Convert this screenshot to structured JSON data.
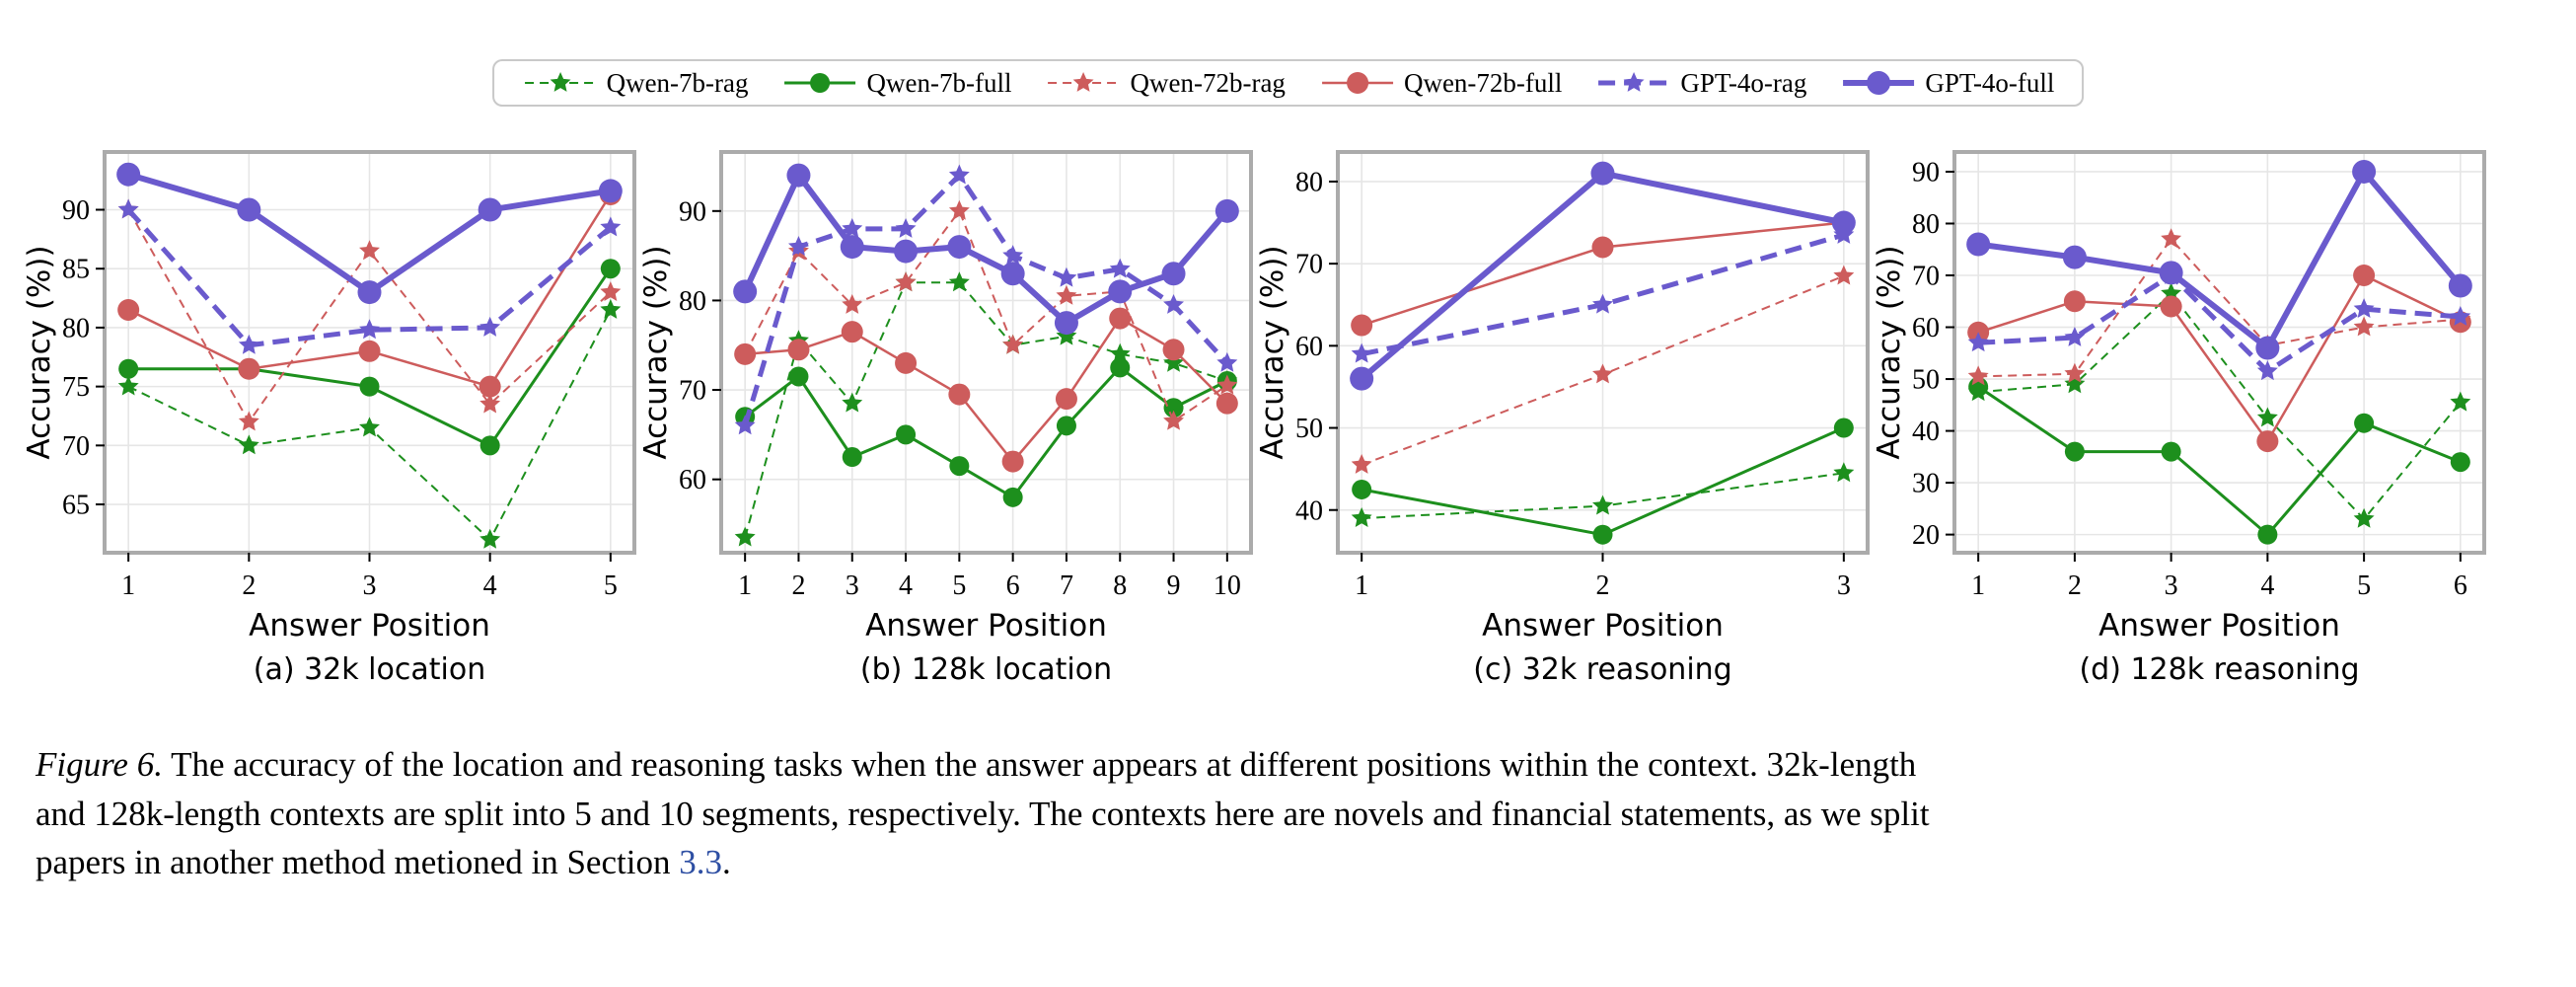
{
  "colors": {
    "qwen7b_green": "#1d8f1d",
    "qwen72b_red": "#cd5c5c",
    "gpt4o_blue": "#6a5acd",
    "grid": "#e6e6e6",
    "plot_border": "#ababab",
    "link_blue": "#2e4fa3"
  },
  "legend": {
    "items": [
      {
        "name": "Qwen-7b-rag",
        "color": "#1d8f1d",
        "style": "dashed",
        "marker": "star"
      },
      {
        "name": "Qwen-7b-full",
        "color": "#1d8f1d",
        "style": "solid",
        "marker": "circle"
      },
      {
        "name": "Qwen-72b-rag",
        "color": "#cd5c5c",
        "style": "dashed",
        "marker": "star"
      },
      {
        "name": "Qwen-72b-full",
        "color": "#cd5c5c",
        "style": "solid",
        "marker": "circle"
      },
      {
        "name": "GPT-4o-rag",
        "color": "#6a5acd",
        "style": "dashed",
        "marker": "star"
      },
      {
        "name": "GPT-4o-full",
        "color": "#6a5acd",
        "style": "solid",
        "marker": "circle"
      }
    ]
  },
  "chart_data": [
    {
      "id": "a",
      "type": "line",
      "caption": "(a) 32k location",
      "xlabel": "Answer Position",
      "ylabel": "Accuracy (%))",
      "x": [
        1,
        2,
        3,
        4,
        5
      ],
      "yticks": [
        65,
        70,
        75,
        80,
        85,
        90
      ],
      "ylim": [
        60.9,
        94.9
      ],
      "grid": true,
      "series": [
        {
          "name": "Qwen-7b-rag",
          "values": [
            75,
            70,
            71.5,
            62,
            81.5
          ]
        },
        {
          "name": "Qwen-7b-full",
          "values": [
            76.5,
            76.5,
            75,
            70,
            85
          ]
        },
        {
          "name": "Qwen-72b-rag",
          "values": [
            90,
            72,
            86.5,
            73.5,
            83
          ]
        },
        {
          "name": "Qwen-72b-full",
          "values": [
            81.5,
            76.5,
            78,
            75,
            91.3
          ]
        },
        {
          "name": "GPT-4o-rag",
          "values": [
            90,
            78.5,
            79.8,
            80,
            88.5
          ]
        },
        {
          "name": "GPT-4o-full",
          "values": [
            93,
            90,
            83,
            90,
            91.6
          ]
        }
      ]
    },
    {
      "id": "b",
      "type": "line",
      "caption": "(b) 128k location",
      "xlabel": "Answer Position",
      "ylabel": "Accuracy (%))",
      "x": [
        1,
        2,
        3,
        4,
        5,
        6,
        7,
        8,
        9,
        10
      ],
      "yticks": [
        60,
        70,
        80,
        90
      ],
      "ylim": [
        51.8,
        96.6
      ],
      "grid": true,
      "series": [
        {
          "name": "Qwen-7b-rag",
          "values": [
            53.5,
            75.5,
            68.5,
            82,
            82,
            75,
            76,
            74,
            73,
            71
          ]
        },
        {
          "name": "Qwen-7b-full",
          "values": [
            67,
            71.5,
            62.5,
            65,
            61.5,
            58,
            66,
            72.5,
            68,
            71
          ]
        },
        {
          "name": "Qwen-72b-rag",
          "values": [
            74,
            85.5,
            79.5,
            82,
            90,
            75,
            80.5,
            81,
            66.5,
            70.5
          ]
        },
        {
          "name": "Qwen-72b-full",
          "values": [
            74,
            74.5,
            76.5,
            73,
            69.5,
            62,
            69,
            78,
            74.5,
            68.5
          ]
        },
        {
          "name": "GPT-4o-rag",
          "values": [
            66,
            86,
            88,
            88,
            94,
            85,
            82.5,
            83.5,
            79.5,
            73
          ]
        },
        {
          "name": "GPT-4o-full",
          "values": [
            81,
            94,
            86,
            85.5,
            86,
            83,
            77.5,
            81,
            83,
            90
          ]
        }
      ]
    },
    {
      "id": "c",
      "type": "line",
      "caption": "(c) 32k reasoning",
      "xlabel": "Answer Position",
      "ylabel": "Accuracy (%))",
      "x": [
        1,
        2,
        3
      ],
      "yticks": [
        40,
        50,
        60,
        70,
        80
      ],
      "ylim": [
        34.8,
        83.6
      ],
      "grid": true,
      "series": [
        {
          "name": "Qwen-7b-rag",
          "values": [
            39,
            40.5,
            44.5
          ]
        },
        {
          "name": "Qwen-7b-full",
          "values": [
            42.5,
            37,
            50
          ]
        },
        {
          "name": "Qwen-72b-rag",
          "values": [
            45.5,
            56.5,
            68.5
          ]
        },
        {
          "name": "Qwen-72b-full",
          "values": [
            62.5,
            72,
            75
          ]
        },
        {
          "name": "GPT-4o-rag",
          "values": [
            59,
            65,
            73.5
          ]
        },
        {
          "name": "GPT-4o-full",
          "values": [
            56,
            81,
            75
          ]
        }
      ]
    },
    {
      "id": "d",
      "type": "line",
      "caption": "(d) 128k reasoning",
      "xlabel": "Answer Position",
      "ylabel": "Accuracy (%))",
      "x": [
        1,
        2,
        3,
        4,
        5,
        6
      ],
      "yticks": [
        20,
        30,
        40,
        50,
        60,
        70,
        80,
        90
      ],
      "ylim": [
        16.5,
        93.8
      ],
      "grid": true,
      "series": [
        {
          "name": "Qwen-7b-rag",
          "values": [
            47.5,
            49,
            66.5,
            42.5,
            23,
            45.5
          ]
        },
        {
          "name": "Qwen-7b-full",
          "values": [
            48.5,
            36,
            36,
            20,
            41.5,
            34
          ]
        },
        {
          "name": "Qwen-72b-rag",
          "values": [
            50.5,
            51,
            77,
            56.5,
            60,
            61.5
          ]
        },
        {
          "name": "Qwen-72b-full",
          "values": [
            59,
            65,
            64,
            38,
            70,
            61
          ]
        },
        {
          "name": "GPT-4o-rag",
          "values": [
            57,
            58,
            70,
            51.5,
            63.5,
            62
          ]
        },
        {
          "name": "GPT-4o-full",
          "values": [
            76,
            73.5,
            70.5,
            56,
            90,
            68
          ]
        }
      ]
    }
  ],
  "figure_caption": {
    "label": "Figure 6.",
    "line1_rest": " The accuracy of the location and reasoning tasks when the answer appears at different positions within the context. 32k-length",
    "line2": "and 128k-length contexts are split into 5 and 10 segments, respectively. The contexts here are novels and financial statements, as we split",
    "line3_pre": "papers in another method metioned in Section ",
    "link": "3.3",
    "line3_post": "."
  }
}
